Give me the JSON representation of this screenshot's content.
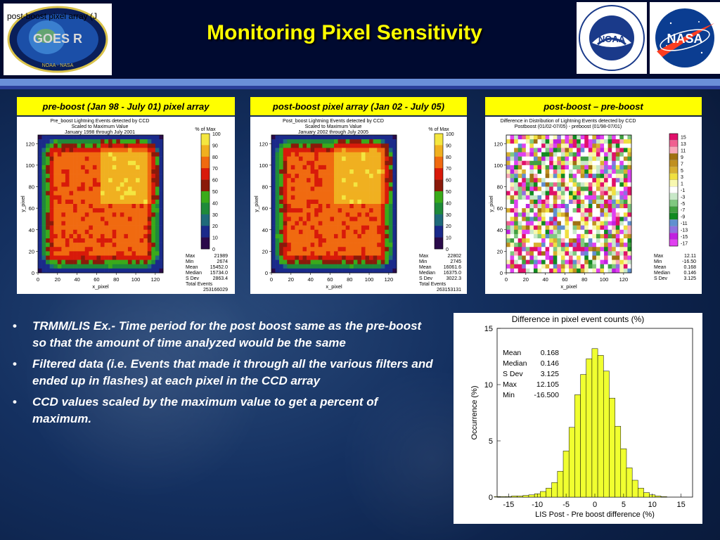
{
  "slide": {
    "title": "Monitoring Pixel Sensitivity",
    "top_note": "post-boost pixel array (J",
    "logos": {
      "goes": "GOES R",
      "goes_bottom": "NOAA - NASA",
      "noaa": "NOAA",
      "nasa": "NASA"
    }
  },
  "panels": [
    {
      "label": "pre-boost (Jan 98 - July 01) pixel array",
      "title_lines": [
        "Pre_boost Lightning Events detected by CCD",
        "Scaled to Maximum Value",
        "January 1998 through July 2001"
      ],
      "colorbar_title": "% of Max",
      "colorbar_ticks": [
        "100",
        "90",
        "80",
        "70",
        "60",
        "50",
        "40",
        "30",
        "20",
        "10",
        "0"
      ],
      "xlabel": "x_pixel",
      "ylabel": "y_pixel",
      "x_ticks": [
        "0",
        "20",
        "40",
        "60",
        "80",
        "100",
        "120"
      ],
      "y_ticks": [
        "0",
        "20",
        "40",
        "60",
        "80",
        "100",
        "120"
      ],
      "stats": [
        [
          "Max",
          "21989"
        ],
        [
          "Min",
          "2674"
        ],
        [
          "Mean",
          "15452.0"
        ],
        [
          "Median",
          "15734.0"
        ],
        [
          "S Dev",
          "2863.4"
        ],
        [
          "Total Events",
          ""
        ],
        [
          "",
          "253166029"
        ]
      ]
    },
    {
      "label": "post-boost pixel array (Jan 02 - July 05)",
      "title_lines": [
        "Post_boost Lightning Events detected by CCD",
        "Scaled to Maximum Value",
        "January 2002 through July 2005"
      ],
      "colorbar_title": "% of Max",
      "colorbar_ticks": [
        "100",
        "90",
        "80",
        "70",
        "60",
        "50",
        "40",
        "30",
        "20",
        "10",
        "0"
      ],
      "xlabel": "x_pixel",
      "ylabel": "y_pixel",
      "x_ticks": [
        "0",
        "20",
        "40",
        "60",
        "80",
        "100",
        "120"
      ],
      "y_ticks": [
        "0",
        "20",
        "40",
        "60",
        "80",
        "100",
        "120"
      ],
      "stats": [
        [
          "Max",
          "22802"
        ],
        [
          "Min",
          "2745"
        ],
        [
          "Mean",
          "16061.6"
        ],
        [
          "Median",
          "16375.0"
        ],
        [
          "S Dev",
          "3022.3"
        ],
        [
          "Total Events",
          ""
        ],
        [
          "",
          "263153131"
        ]
      ]
    },
    {
      "label": "post-boost – pre-boost",
      "title_lines": [
        "Difference in Distribution of Lightning Events detected by CCD",
        "Postboost (01/02-07/05) - preboost (01/98-07/01)"
      ],
      "colorbar_title": "",
      "colorbar_ticks": [
        "15",
        "13",
        "11",
        "9",
        "7",
        "5",
        "3",
        "1",
        "-1",
        "-3",
        "-5",
        "-7",
        "-9",
        "-11",
        "-13",
        "-15",
        "-17"
      ],
      "xlabel": "x_pixel",
      "ylabel": "y_pixel",
      "x_ticks": [
        "0",
        "20",
        "40",
        "60",
        "80",
        "100",
        "120"
      ],
      "y_ticks": [
        "0",
        "20",
        "40",
        "60",
        "80",
        "100",
        "120"
      ],
      "stats": [
        [
          "Max",
          "12.11"
        ],
        [
          "Min",
          "-16.50"
        ],
        [
          "Mean",
          "0.168"
        ],
        [
          "Median",
          "0.146"
        ],
        [
          "S Dev",
          "3.125"
        ]
      ]
    }
  ],
  "bullets": [
    "TRMM/LIS Ex.- Time period for the post boost same as the pre-boost so that the amount of time analyzed would be the same",
    "Filtered data (i.e. Events that made it through all the various filters and ended up in flashes) at each pixel in the CCD array",
    "CCD values scaled by the maximum value to get a percent of maximum."
  ],
  "bullet_symbol": "•",
  "colors": {
    "title": "#ffff00",
    "label_bg": "#ffff00",
    "hist_bar": "#f0ff30"
  },
  "chart_data": [
    {
      "type": "heatmap",
      "title": "Pre_boost Lightning Events detected by CCD",
      "xlabel": "x_pixel",
      "ylabel": "y_pixel",
      "xlim": [
        0,
        128
      ],
      "ylim": [
        0,
        128
      ],
      "colorbar": "% of Max",
      "clim": [
        0,
        100
      ]
    },
    {
      "type": "heatmap",
      "title": "Post_boost Lightning Events detected by CCD",
      "xlabel": "x_pixel",
      "ylabel": "y_pixel",
      "xlim": [
        0,
        128
      ],
      "ylim": [
        0,
        128
      ],
      "colorbar": "% of Max",
      "clim": [
        0,
        100
      ]
    },
    {
      "type": "heatmap",
      "title": "Difference in Distribution of Lightning Events detected by CCD",
      "xlabel": "x_pixel",
      "ylabel": "y_pixel",
      "xlim": [
        0,
        128
      ],
      "ylim": [
        0,
        128
      ],
      "clim": [
        -17,
        15
      ]
    },
    {
      "type": "bar",
      "title": "Difference in pixel event counts (%)",
      "xlabel": "LIS Post - Pre boost difference (%)",
      "ylabel": "Occurrence (%)",
      "xlim": [
        -17,
        17
      ],
      "ylim": [
        0,
        15
      ],
      "x_ticks": [
        "-15",
        "-10",
        "-5",
        "0",
        "5",
        "10",
        "15"
      ],
      "y_ticks": [
        "0",
        "5",
        "10",
        "15"
      ],
      "bin_width": 1,
      "x": [
        -17,
        -16,
        -15,
        -14,
        -13,
        -12,
        -11,
        -10,
        -9,
        -8,
        -7,
        -6,
        -5,
        -4,
        -3,
        -2,
        -1,
        0,
        1,
        2,
        3,
        4,
        5,
        6,
        7,
        8,
        9,
        10,
        11,
        12
      ],
      "values": [
        0.05,
        0.05,
        0.05,
        0.1,
        0.1,
        0.15,
        0.2,
        0.3,
        0.5,
        0.8,
        1.3,
        2.3,
        4.1,
        6.2,
        9.1,
        10.9,
        12.3,
        13.2,
        12.6,
        11.2,
        8.8,
        6.3,
        4.3,
        2.6,
        1.5,
        0.8,
        0.4,
        0.2,
        0.1,
        0.05
      ],
      "stats": [
        [
          "Mean",
          "0.168"
        ],
        [
          "Median",
          "0.146"
        ],
        [
          "S Dev",
          "3.125"
        ],
        [
          "Max",
          "12.105"
        ],
        [
          "Min",
          "-16.500"
        ]
      ]
    }
  ]
}
